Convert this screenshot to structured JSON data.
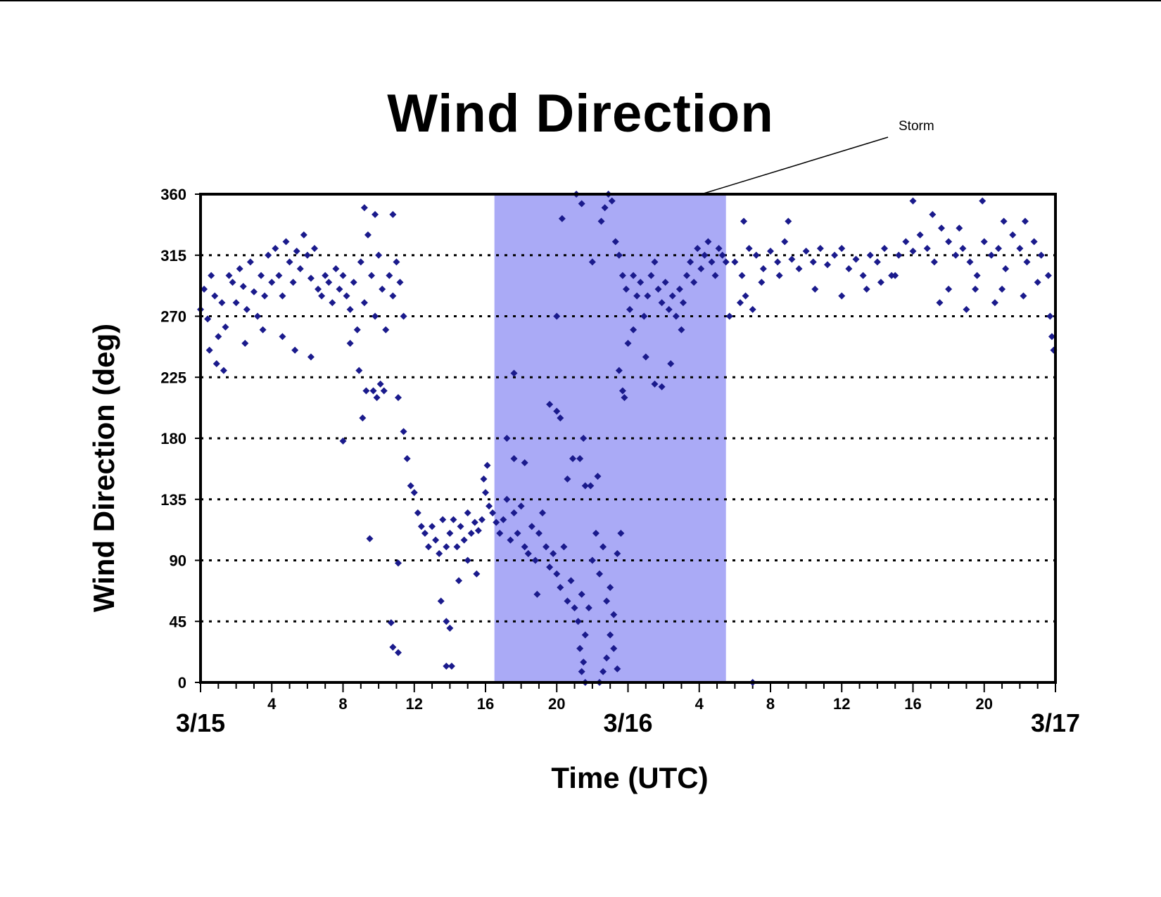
{
  "chart_data": {
    "type": "scatter",
    "title": "Wind Direction",
    "xlabel": "Time (UTC)",
    "ylabel": "Wind Direction (deg)",
    "ylim": [
      0,
      360
    ],
    "yticks": [
      "0",
      "45",
      "90",
      "135",
      "180",
      "225",
      "270",
      "315",
      "360"
    ],
    "xlim_hours": [
      0,
      48
    ],
    "xticks_hour_labels": [
      {
        "hour": 4,
        "label": "4"
      },
      {
        "hour": 8,
        "label": "8"
      },
      {
        "hour": 12,
        "label": "12"
      },
      {
        "hour": 16,
        "label": "16"
      },
      {
        "hour": 20,
        "label": "20"
      },
      {
        "hour": 28,
        "label": "4"
      },
      {
        "hour": 32,
        "label": "8"
      },
      {
        "hour": 36,
        "label": "12"
      },
      {
        "hour": 40,
        "label": "16"
      },
      {
        "hour": 44,
        "label": "20"
      }
    ],
    "date_labels": [
      {
        "hour": 0,
        "label": "3/15"
      },
      {
        "hour": 24,
        "label": "3/16"
      },
      {
        "hour": 48,
        "label": "3/17"
      }
    ],
    "grid": "horizontal dotted",
    "annotation": {
      "label": "Storm",
      "start_hour": 16.5,
      "end_hour": 29.5,
      "color": "#aaaaf6"
    },
    "marker_color": "#1a1a8c",
    "series": [
      {
        "name": "",
        "points": [
          [
            0.0,
            275
          ],
          [
            0.2,
            290
          ],
          [
            0.4,
            268
          ],
          [
            0.6,
            300
          ],
          [
            0.8,
            285
          ],
          [
            1.0,
            255
          ],
          [
            1.2,
            280
          ],
          [
            1.4,
            262
          ],
          [
            1.6,
            300
          ],
          [
            1.8,
            295
          ],
          [
            2.0,
            280
          ],
          [
            2.2,
            305
          ],
          [
            2.4,
            292
          ],
          [
            2.6,
            275
          ],
          [
            2.8,
            310
          ],
          [
            3.0,
            288
          ],
          [
            3.2,
            270
          ],
          [
            3.4,
            300
          ],
          [
            3.6,
            285
          ],
          [
            3.8,
            315
          ],
          [
            4.0,
            295
          ],
          [
            4.2,
            320
          ],
          [
            4.4,
            300
          ],
          [
            4.6,
            285
          ],
          [
            4.8,
            325
          ],
          [
            5.0,
            310
          ],
          [
            5.2,
            295
          ],
          [
            5.4,
            318
          ],
          [
            5.6,
            305
          ],
          [
            5.8,
            330
          ],
          [
            6.0,
            315
          ],
          [
            6.2,
            298
          ],
          [
            6.4,
            320
          ],
          [
            6.6,
            290
          ],
          [
            6.8,
            285
          ],
          [
            7.0,
            300
          ],
          [
            7.2,
            295
          ],
          [
            7.4,
            280
          ],
          [
            7.6,
            305
          ],
          [
            7.8,
            290
          ],
          [
            8.0,
            300
          ],
          [
            8.2,
            285
          ],
          [
            8.4,
            275
          ],
          [
            8.6,
            295
          ],
          [
            8.8,
            260
          ],
          [
            9.0,
            310
          ],
          [
            9.2,
            280
          ],
          [
            9.4,
            330
          ],
          [
            9.6,
            300
          ],
          [
            9.8,
            270
          ],
          [
            10.0,
            315
          ],
          [
            10.2,
            290
          ],
          [
            10.4,
            260
          ],
          [
            10.6,
            300
          ],
          [
            10.8,
            285
          ],
          [
            11.0,
            310
          ],
          [
            11.2,
            295
          ],
          [
            11.4,
            270
          ],
          [
            0.5,
            245
          ],
          [
            0.9,
            235
          ],
          [
            1.3,
            230
          ],
          [
            2.5,
            250
          ],
          [
            3.5,
            260
          ],
          [
            8.4,
            250
          ],
          [
            8.9,
            230
          ],
          [
            9.1,
            195
          ],
          [
            9.3,
            215
          ],
          [
            9.7,
            215
          ],
          [
            9.9,
            210
          ],
          [
            10.1,
            220
          ],
          [
            10.3,
            215
          ],
          [
            8.0,
            178
          ],
          [
            9.2,
            350
          ],
          [
            9.8,
            345
          ],
          [
            10.8,
            345
          ],
          [
            4.6,
            255
          ],
          [
            5.3,
            245
          ],
          [
            6.2,
            240
          ],
          [
            11.1,
            210
          ],
          [
            11.4,
            185
          ],
          [
            11.6,
            165
          ],
          [
            11.8,
            145
          ],
          [
            12.0,
            140
          ],
          [
            12.2,
            125
          ],
          [
            12.4,
            115
          ],
          [
            12.6,
            110
          ],
          [
            12.8,
            100
          ],
          [
            13.0,
            115
          ],
          [
            13.2,
            105
          ],
          [
            13.4,
            95
          ],
          [
            13.6,
            120
          ],
          [
            13.8,
            100
          ],
          [
            14.0,
            110
          ],
          [
            14.2,
            120
          ],
          [
            14.4,
            100
          ],
          [
            14.6,
            115
          ],
          [
            14.8,
            105
          ],
          [
            15.0,
            125
          ],
          [
            15.2,
            110
          ],
          [
            15.4,
            118
          ],
          [
            15.6,
            112
          ],
          [
            15.8,
            120
          ],
          [
            16.0,
            140
          ],
          [
            16.2,
            130
          ],
          [
            16.4,
            125
          ],
          [
            16.6,
            118
          ],
          [
            16.8,
            110
          ],
          [
            13.5,
            60
          ],
          [
            13.8,
            45
          ],
          [
            14.0,
            40
          ],
          [
            14.5,
            75
          ],
          [
            15.0,
            90
          ],
          [
            15.5,
            80
          ],
          [
            13.8,
            12
          ],
          [
            14.1,
            12
          ],
          [
            11.1,
            88
          ],
          [
            9.5,
            106
          ],
          [
            10.7,
            44
          ],
          [
            10.8,
            26
          ],
          [
            11.1,
            22
          ],
          [
            15.9,
            150
          ],
          [
            16.1,
            160
          ],
          [
            17.0,
            120
          ],
          [
            17.2,
            135
          ],
          [
            17.4,
            105
          ],
          [
            17.6,
            125
          ],
          [
            17.8,
            110
          ],
          [
            18.0,
            130
          ],
          [
            18.2,
            100
          ],
          [
            18.4,
            95
          ],
          [
            18.6,
            115
          ],
          [
            18.8,
            90
          ],
          [
            19.0,
            110
          ],
          [
            19.2,
            125
          ],
          [
            19.4,
            100
          ],
          [
            19.6,
            85
          ],
          [
            19.8,
            95
          ],
          [
            20.0,
            80
          ],
          [
            20.2,
            70
          ],
          [
            20.4,
            100
          ],
          [
            20.6,
            60
          ],
          [
            20.8,
            75
          ],
          [
            21.0,
            55
          ],
          [
            21.2,
            45
          ],
          [
            21.4,
            65
          ],
          [
            21.6,
            35
          ],
          [
            21.8,
            55
          ],
          [
            22.0,
            90
          ],
          [
            22.2,
            110
          ],
          [
            22.4,
            80
          ],
          [
            22.6,
            100
          ],
          [
            22.8,
            60
          ],
          [
            23.0,
            70
          ],
          [
            23.2,
            50
          ],
          [
            23.4,
            95
          ],
          [
            23.6,
            110
          ],
          [
            17.2,
            180
          ],
          [
            17.6,
            165
          ],
          [
            18.2,
            162
          ],
          [
            18.4,
            95
          ],
          [
            18.9,
            65
          ],
          [
            19.6,
            205
          ],
          [
            20.0,
            200
          ],
          [
            20.2,
            195
          ],
          [
            20.6,
            150
          ],
          [
            20.9,
            165
          ],
          [
            21.3,
            165
          ],
          [
            21.5,
            180
          ],
          [
            21.6,
            145
          ],
          [
            21.9,
            145
          ],
          [
            21.3,
            25
          ],
          [
            21.5,
            15
          ],
          [
            21.4,
            8
          ],
          [
            21.6,
            0
          ],
          [
            22.4,
            0
          ],
          [
            22.6,
            8
          ],
          [
            22.8,
            18
          ],
          [
            23.0,
            35
          ],
          [
            23.2,
            25
          ],
          [
            23.4,
            10
          ],
          [
            20.0,
            270
          ],
          [
            22.3,
            152
          ],
          [
            17.6,
            228
          ],
          [
            20.3,
            342
          ],
          [
            21.1,
            360
          ],
          [
            21.4,
            353
          ],
          [
            22.0,
            310
          ],
          [
            22.5,
            340
          ],
          [
            22.7,
            350
          ],
          [
            22.9,
            360
          ],
          [
            23.1,
            355
          ],
          [
            23.3,
            325
          ],
          [
            23.5,
            315
          ],
          [
            23.7,
            300
          ],
          [
            23.9,
            290
          ],
          [
            24.1,
            275
          ],
          [
            24.3,
            300
          ],
          [
            24.5,
            285
          ],
          [
            24.7,
            295
          ],
          [
            24.9,
            270
          ],
          [
            25.1,
            285
          ],
          [
            25.3,
            300
          ],
          [
            25.5,
            310
          ],
          [
            25.7,
            290
          ],
          [
            25.9,
            280
          ],
          [
            26.1,
            295
          ],
          [
            26.3,
            275
          ],
          [
            26.5,
            285
          ],
          [
            26.7,
            270
          ],
          [
            26.9,
            290
          ],
          [
            27.1,
            280
          ],
          [
            27.3,
            300
          ],
          [
            27.5,
            310
          ],
          [
            27.7,
            295
          ],
          [
            27.9,
            320
          ],
          [
            28.1,
            305
          ],
          [
            28.3,
            315
          ],
          [
            28.5,
            325
          ],
          [
            28.7,
            310
          ],
          [
            28.9,
            300
          ],
          [
            29.1,
            320
          ],
          [
            29.3,
            315
          ],
          [
            29.5,
            310
          ],
          [
            23.5,
            230
          ],
          [
            23.7,
            215
          ],
          [
            24.0,
            250
          ],
          [
            24.3,
            260
          ],
          [
            25.0,
            240
          ],
          [
            25.5,
            220
          ],
          [
            25.9,
            218
          ],
          [
            26.4,
            235
          ],
          [
            27.0,
            260
          ],
          [
            23.8,
            210
          ],
          [
            30.0,
            310
          ],
          [
            30.4,
            300
          ],
          [
            30.8,
            320
          ],
          [
            31.2,
            315
          ],
          [
            31.6,
            305
          ],
          [
            32.0,
            318
          ],
          [
            32.4,
            310
          ],
          [
            32.8,
            325
          ],
          [
            33.2,
            312
          ],
          [
            33.6,
            305
          ],
          [
            34.0,
            318
          ],
          [
            34.4,
            310
          ],
          [
            34.8,
            320
          ],
          [
            35.2,
            308
          ],
          [
            35.6,
            315
          ],
          [
            36.0,
            320
          ],
          [
            36.4,
            305
          ],
          [
            36.8,
            312
          ],
          [
            37.2,
            300
          ],
          [
            37.6,
            315
          ],
          [
            38.0,
            310
          ],
          [
            38.4,
            320
          ],
          [
            38.8,
            300
          ],
          [
            39.2,
            315
          ],
          [
            39.6,
            325
          ],
          [
            40.0,
            318
          ],
          [
            40.4,
            330
          ],
          [
            40.8,
            320
          ],
          [
            41.2,
            310
          ],
          [
            41.6,
            335
          ],
          [
            42.0,
            325
          ],
          [
            42.4,
            315
          ],
          [
            42.8,
            320
          ],
          [
            43.2,
            310
          ],
          [
            43.6,
            300
          ],
          [
            44.0,
            325
          ],
          [
            44.4,
            315
          ],
          [
            44.8,
            320
          ],
          [
            45.2,
            305
          ],
          [
            45.6,
            330
          ],
          [
            46.0,
            320
          ],
          [
            46.4,
            310
          ],
          [
            46.8,
            325
          ],
          [
            47.2,
            315
          ],
          [
            47.6,
            300
          ],
          [
            30.3,
            280
          ],
          [
            30.6,
            285
          ],
          [
            31.0,
            275
          ],
          [
            31.5,
            295
          ],
          [
            32.5,
            300
          ],
          [
            34.5,
            290
          ],
          [
            36.0,
            285
          ],
          [
            37.4,
            290
          ],
          [
            38.2,
            295
          ],
          [
            39.0,
            300
          ],
          [
            41.5,
            280
          ],
          [
            42.0,
            290
          ],
          [
            43.0,
            275
          ],
          [
            43.5,
            290
          ],
          [
            44.6,
            280
          ],
          [
            45.0,
            290
          ],
          [
            46.2,
            285
          ],
          [
            47.0,
            295
          ],
          [
            47.7,
            270
          ],
          [
            47.9,
            245
          ],
          [
            47.8,
            255
          ],
          [
            30.5,
            340
          ],
          [
            33.0,
            340
          ],
          [
            40.0,
            355
          ],
          [
            41.1,
            345
          ],
          [
            42.6,
            335
          ],
          [
            43.9,
            355
          ],
          [
            45.1,
            340
          ],
          [
            46.3,
            340
          ],
          [
            29.7,
            270
          ],
          [
            31.0,
            0
          ]
        ]
      }
    ]
  }
}
